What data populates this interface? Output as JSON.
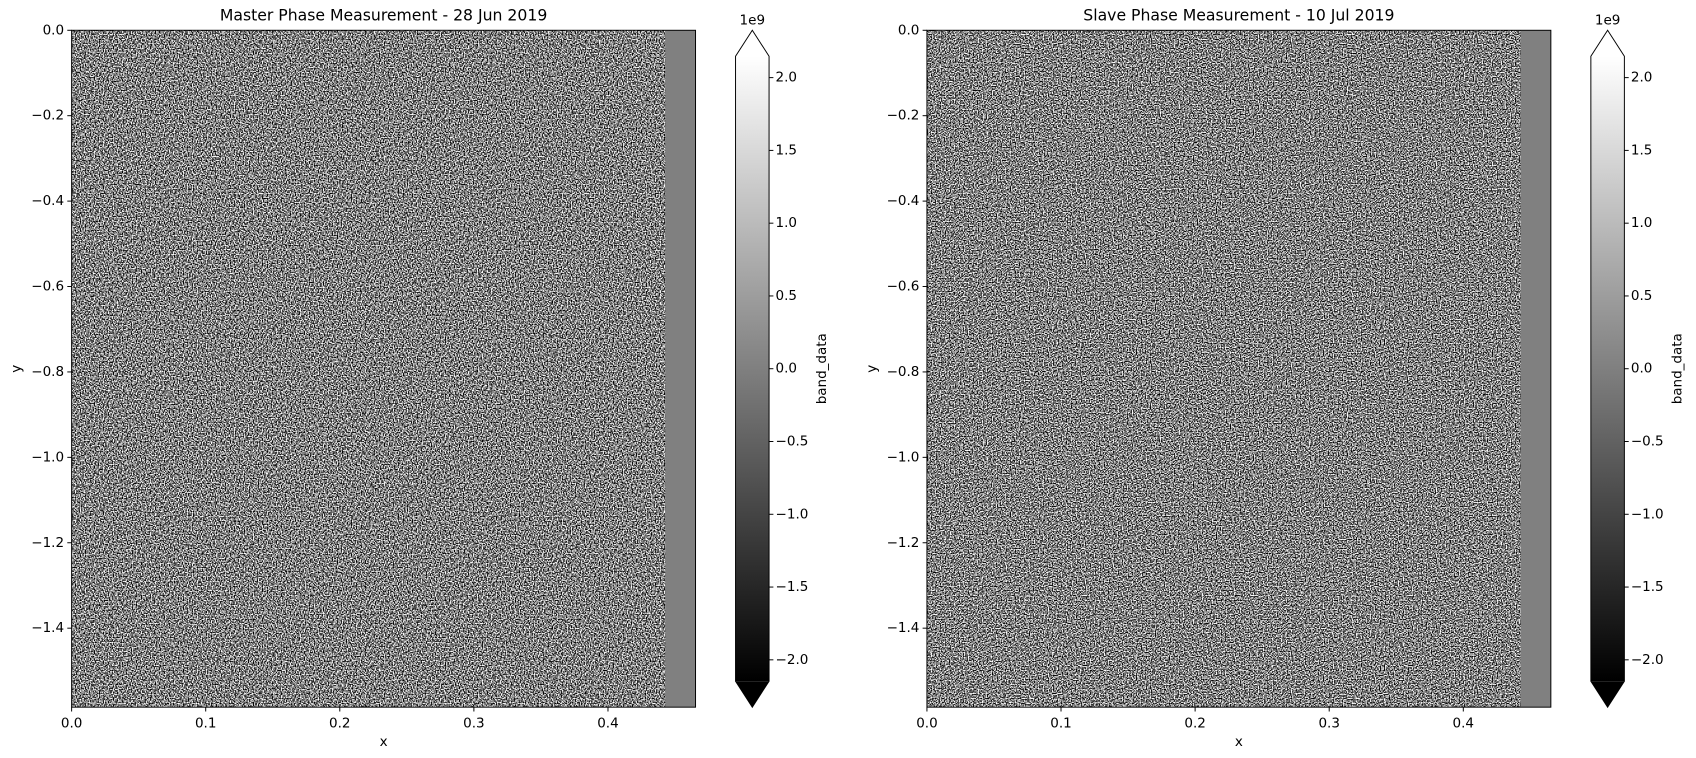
{
  "chart_data": [
    {
      "type": "heatmap",
      "title": "Master Phase Measurement - 28 Jun 2019",
      "xlabel": "x",
      "ylabel": "y",
      "xlim": [
        0,
        0.4653
      ],
      "ylim": [
        -1.585,
        0
      ],
      "xticks": [
        {
          "value": 0.0,
          "label": "0.0"
        },
        {
          "value": 0.1,
          "label": "0.1"
        },
        {
          "value": 0.2,
          "label": "0.2"
        },
        {
          "value": 0.3,
          "label": "0.3"
        },
        {
          "value": 0.4,
          "label": "0.4"
        }
      ],
      "yticks": [
        {
          "value": 0.0,
          "label": "0.0"
        },
        {
          "value": -0.2,
          "label": "−0.2"
        },
        {
          "value": -0.4,
          "label": "−0.4"
        },
        {
          "value": -0.6,
          "label": "−0.6"
        },
        {
          "value": -0.8,
          "label": "−0.8"
        },
        {
          "value": -1.0,
          "label": "−1.0"
        },
        {
          "value": -1.2,
          "label": "−1.2"
        },
        {
          "value": -1.4,
          "label": "−1.4"
        }
      ],
      "noise_seed": 3,
      "strip_xlim": [
        0.4427,
        0.4653
      ],
      "strip_value": 0,
      "colorbar": {
        "label": "band_data",
        "offset_text": "1e9",
        "lim": [
          -2.147,
          2.147
        ],
        "cmap": "gray",
        "extend": "both",
        "ticks": [
          {
            "value": -2.0,
            "label": "−2.0"
          },
          {
            "value": -1.5,
            "label": "−1.5"
          },
          {
            "value": -1.0,
            "label": "−1.0"
          },
          {
            "value": -0.5,
            "label": "−0.5"
          },
          {
            "value": 0.0,
            "label": "0.0"
          },
          {
            "value": 0.5,
            "label": "0.5"
          },
          {
            "value": 1.0,
            "label": "1.0"
          },
          {
            "value": 1.5,
            "label": "1.5"
          },
          {
            "value": 2.0,
            "label": "2.0"
          }
        ]
      }
    },
    {
      "type": "heatmap",
      "title": "Slave Phase Measurement - 10 Jul 2019",
      "xlabel": "x",
      "ylabel": "y",
      "xlim": [
        0,
        0.4653
      ],
      "ylim": [
        -1.585,
        0
      ],
      "xticks": [
        {
          "value": 0.0,
          "label": "0.0"
        },
        {
          "value": 0.1,
          "label": "0.1"
        },
        {
          "value": 0.2,
          "label": "0.2"
        },
        {
          "value": 0.3,
          "label": "0.3"
        },
        {
          "value": 0.4,
          "label": "0.4"
        }
      ],
      "yticks": [
        {
          "value": 0.0,
          "label": "0.0"
        },
        {
          "value": -0.2,
          "label": "−0.2"
        },
        {
          "value": -0.4,
          "label": "−0.4"
        },
        {
          "value": -0.6,
          "label": "−0.6"
        },
        {
          "value": -0.8,
          "label": "−0.8"
        },
        {
          "value": -1.0,
          "label": "−1.0"
        },
        {
          "value": -1.2,
          "label": "−1.2"
        },
        {
          "value": -1.4,
          "label": "−1.4"
        }
      ],
      "noise_seed": 11,
      "strip_xlim": [
        0.4427,
        0.4653
      ],
      "strip_value": 0,
      "colorbar": {
        "label": "band_data",
        "offset_text": "1e9",
        "lim": [
          -2.147,
          2.147
        ],
        "cmap": "gray",
        "extend": "both",
        "ticks": [
          {
            "value": -2.0,
            "label": "−2.0"
          },
          {
            "value": -1.5,
            "label": "−1.5"
          },
          {
            "value": -1.0,
            "label": "−1.0"
          },
          {
            "value": -0.5,
            "label": "−0.5"
          },
          {
            "value": 0.0,
            "label": "0.0"
          },
          {
            "value": 0.5,
            "label": "0.5"
          },
          {
            "value": 1.0,
            "label": "1.0"
          },
          {
            "value": 1.5,
            "label": "1.5"
          },
          {
            "value": 2.0,
            "label": "2.0"
          }
        ]
      }
    }
  ]
}
